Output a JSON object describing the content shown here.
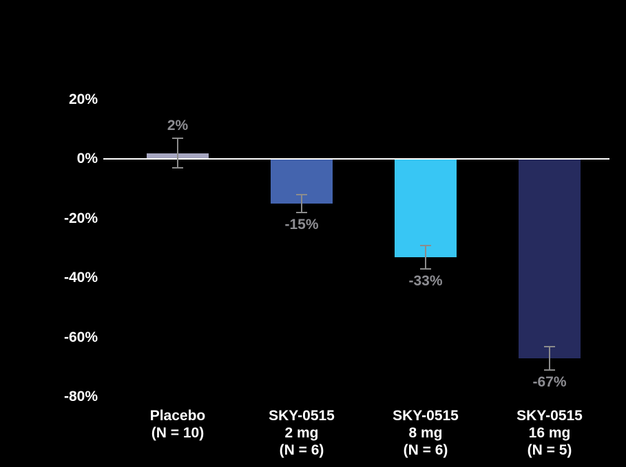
{
  "chart_data": {
    "type": "bar",
    "categories": [
      [
        "Placebo",
        "(N = 10)"
      ],
      [
        "SKY-0515",
        "2 mg",
        "(N = 6)"
      ],
      [
        "SKY-0515",
        "8 mg",
        "(N = 6)"
      ],
      [
        "SKY-0515",
        "16 mg",
        "(N = 5)"
      ]
    ],
    "values": [
      2,
      -15,
      -33,
      -67
    ],
    "data_labels": [
      "2%",
      "-15%",
      "-33%",
      "-67%"
    ],
    "error_bars": [
      5,
      3,
      4,
      4
    ],
    "bar_colors": [
      "#a7a7c1",
      "#4464ae",
      "#38c6f4",
      "#262b5e"
    ],
    "y_ticks": [
      20,
      0,
      -20,
      -40,
      -60,
      -80
    ],
    "y_tick_labels": [
      "20%",
      "0%",
      "-20%",
      "-40%",
      "-60%",
      "-80%"
    ],
    "ylim": [
      -80,
      20
    ],
    "title": "",
    "xlabel": "",
    "ylabel": "",
    "grid": false,
    "legend": false,
    "background_color": "#000000",
    "axis_text_color": "#ffffff",
    "data_label_color": "#8d8d92",
    "error_bar_color": "#8c8c8c",
    "zero_line_color": "#ffffff"
  }
}
